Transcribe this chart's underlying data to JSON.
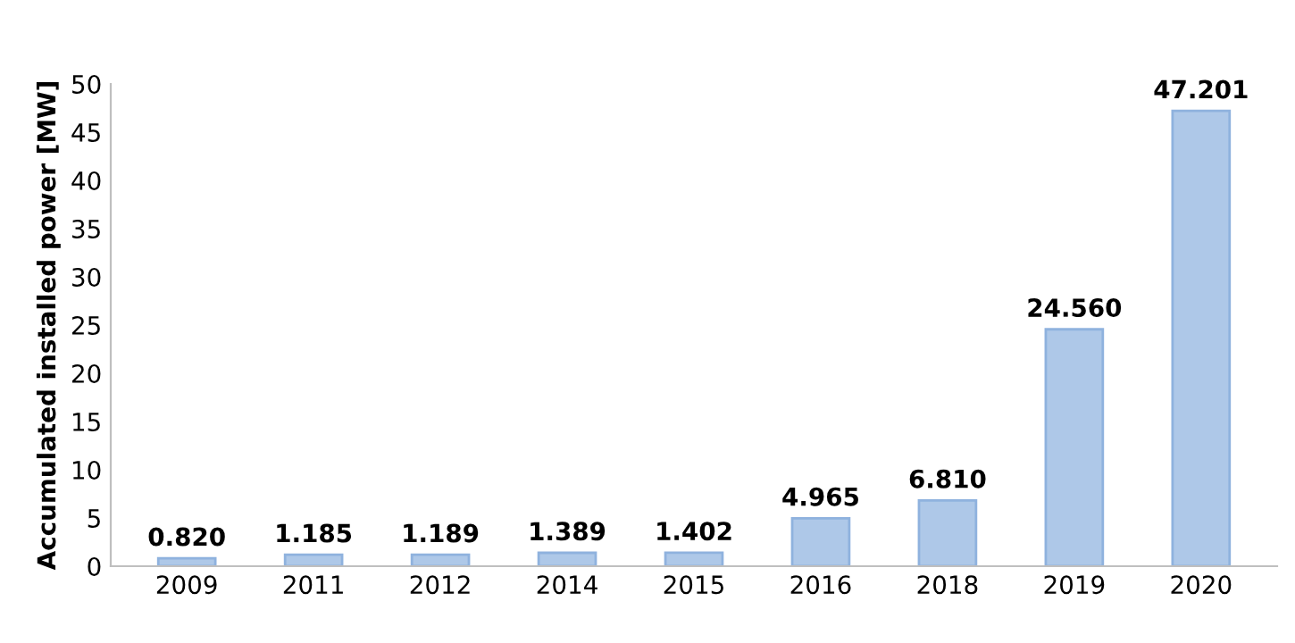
{
  "chart_data": {
    "type": "bar",
    "ylabel": "Accumulated installed power [MW]",
    "categories": [
      "2009",
      "2011",
      "2012",
      "2014",
      "2015",
      "2016",
      "2018",
      "2019",
      "2020"
    ],
    "values": [
      0.82,
      1.185,
      1.189,
      1.389,
      1.402,
      4.965,
      6.81,
      24.56,
      47.201
    ],
    "value_labels": [
      "0.820",
      "1.185",
      "1.189",
      "1.389",
      "1.402",
      "4.965",
      "6.810",
      "24.560",
      "47.201"
    ],
    "color": "#aec8e8",
    "ylim": [
      0,
      50
    ],
    "yticks": [
      0,
      5,
      10,
      15,
      20,
      25,
      30,
      35,
      40,
      45,
      50
    ],
    "grid": false
  }
}
